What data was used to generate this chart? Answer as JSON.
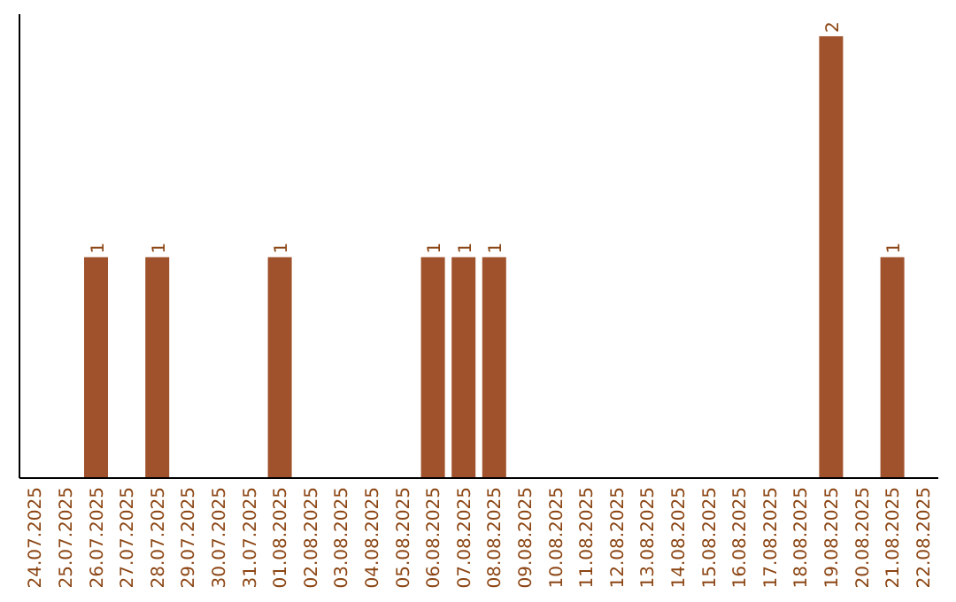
{
  "chart_data": {
    "type": "bar",
    "categories": [
      "24.07.2025",
      "25.07.2025",
      "26.07.2025",
      "27.07.2025",
      "28.07.2025",
      "29.07.2025",
      "30.07.2025",
      "31.07.2025",
      "01.08.2025",
      "02.08.2025",
      "03.08.2025",
      "04.08.2025",
      "05.08.2025",
      "06.08.2025",
      "07.08.2025",
      "08.08.2025",
      "09.08.2025",
      "10.08.2025",
      "11.08.2025",
      "12.08.2025",
      "13.08.2025",
      "14.08.2025",
      "15.08.2025",
      "16.08.2025",
      "17.08.2025",
      "18.08.2025",
      "19.08.2025",
      "20.08.2025",
      "21.08.2025",
      "22.08.2025"
    ],
    "values": [
      0,
      0,
      1,
      0,
      1,
      0,
      0,
      0,
      1,
      0,
      0,
      0,
      0,
      1,
      1,
      1,
      0,
      0,
      0,
      0,
      0,
      0,
      0,
      0,
      0,
      0,
      2,
      0,
      1,
      0
    ],
    "value_labels": [
      null,
      null,
      "1",
      null,
      "1",
      null,
      null,
      null,
      "1",
      null,
      null,
      null,
      null,
      "1",
      "1",
      "1",
      null,
      null,
      null,
      null,
      null,
      null,
      null,
      null,
      null,
      null,
      "2",
      null,
      "1",
      null
    ],
    "color": "#a0522d"
  }
}
